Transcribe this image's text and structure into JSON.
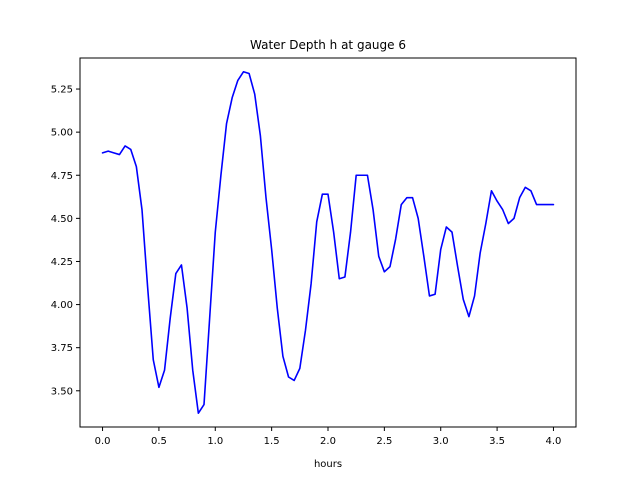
{
  "chart_data": {
    "type": "line",
    "title": "Water Depth h at gauge 6",
    "xlabel": "hours",
    "ylabel": "",
    "xlim": [
      -0.2,
      4.2
    ],
    "ylim": [
      3.29,
      5.43
    ],
    "xticks": [
      0.0,
      0.5,
      1.0,
      1.5,
      2.0,
      2.5,
      3.0,
      3.5,
      4.0
    ],
    "xtick_labels": [
      "0.0",
      "0.5",
      "1.0",
      "1.5",
      "2.0",
      "2.5",
      "3.0",
      "3.5",
      "4.0"
    ],
    "yticks": [
      3.5,
      3.75,
      4.0,
      4.25,
      4.5,
      4.75,
      5.0,
      5.25
    ],
    "ytick_labels": [
      "3.50",
      "3.75",
      "4.00",
      "4.25",
      "4.50",
      "4.75",
      "5.00",
      "5.25"
    ],
    "grid": false,
    "series": [
      {
        "color": "#0000ff",
        "x": [
          0.0,
          0.05,
          0.1,
          0.15,
          0.2,
          0.25,
          0.3,
          0.35,
          0.4,
          0.45,
          0.5,
          0.55,
          0.6,
          0.65,
          0.7,
          0.75,
          0.8,
          0.85,
          0.9,
          0.95,
          1.0,
          1.05,
          1.1,
          1.15,
          1.2,
          1.25,
          1.3,
          1.35,
          1.4,
          1.45,
          1.5,
          1.55,
          1.6,
          1.65,
          1.7,
          1.75,
          1.8,
          1.85,
          1.9,
          1.95,
          2.0,
          2.05,
          2.1,
          2.15,
          2.2,
          2.25,
          2.3,
          2.35,
          2.4,
          2.45,
          2.5,
          2.55,
          2.6,
          2.65,
          2.7,
          2.75,
          2.8,
          2.85,
          2.9,
          2.95,
          3.0,
          3.05,
          3.1,
          3.15,
          3.2,
          3.25,
          3.3,
          3.35,
          3.4,
          3.45,
          3.5,
          3.55,
          3.6,
          3.65,
          3.7,
          3.75,
          3.8,
          3.85,
          3.9,
          3.95,
          4.0
        ],
        "y": [
          4.88,
          4.89,
          4.88,
          4.87,
          4.92,
          4.9,
          4.8,
          4.55,
          4.1,
          3.68,
          3.52,
          3.62,
          3.92,
          4.18,
          4.23,
          3.98,
          3.62,
          3.37,
          3.42,
          3.92,
          4.42,
          4.75,
          5.05,
          5.2,
          5.3,
          5.35,
          5.34,
          5.22,
          4.98,
          4.62,
          4.32,
          3.98,
          3.7,
          3.58,
          3.56,
          3.63,
          3.85,
          4.12,
          4.48,
          4.64,
          4.64,
          4.42,
          4.15,
          4.16,
          4.42,
          4.75,
          4.75,
          4.75,
          4.55,
          4.28,
          4.19,
          4.22,
          4.38,
          4.58,
          4.62,
          4.62,
          4.5,
          4.28,
          4.05,
          4.06,
          4.32,
          4.45,
          4.42,
          4.22,
          4.03,
          3.93,
          4.05,
          4.3,
          4.47,
          4.66,
          4.6,
          4.55,
          4.47,
          4.5,
          4.62,
          4.68,
          4.66,
          4.58,
          4.58,
          4.58,
          4.58
        ]
      }
    ]
  }
}
